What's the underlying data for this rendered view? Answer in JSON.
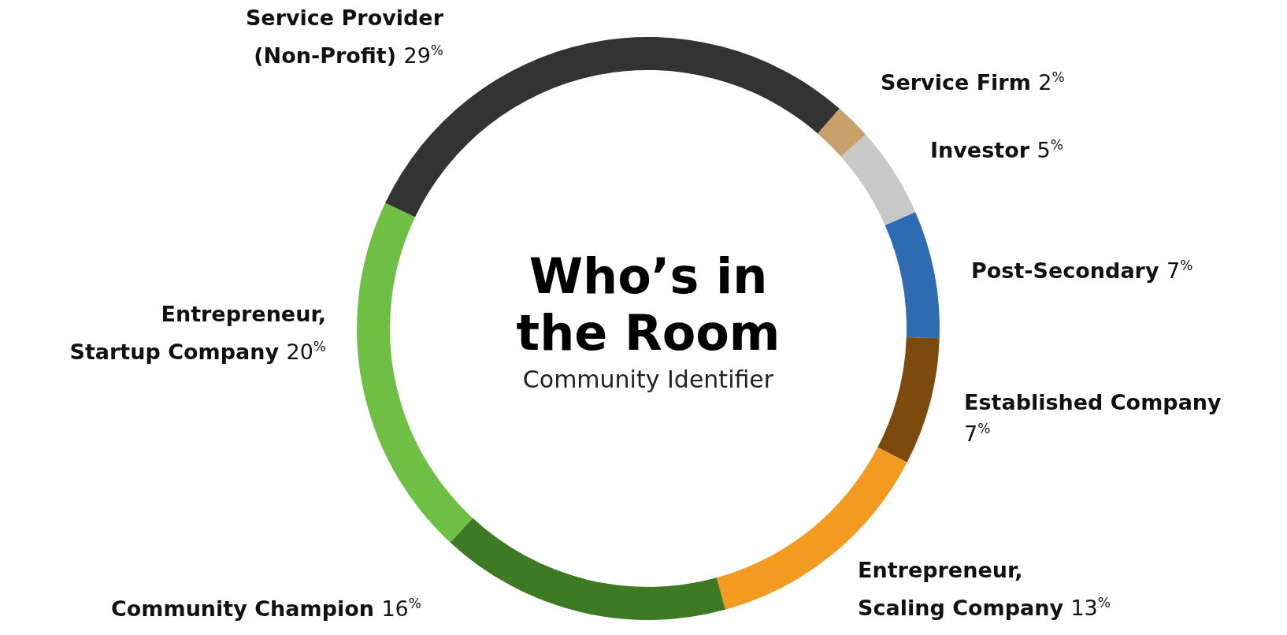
{
  "chart_data": {
    "type": "donut",
    "title": "Who’s in the Room",
    "subtitle": "Community Identifier",
    "categories": [
      "Service Firm",
      "Investor",
      "Post-Secondary",
      "Established Company",
      "Entrepreneur, Scaling Company",
      "Community Champion",
      "Entrepreneur, Startup Company",
      "Service Provider (Non-Profit)"
    ],
    "values": [
      2,
      5,
      7,
      7,
      13,
      16,
      20,
      29
    ],
    "value_labels": [
      "2$^{%}$",
      "5$^{%}$",
      "7$^{%}$",
      "7$^{%}$",
      "13$^{%}$",
      "16$^{%}$",
      "20$^{%}$",
      "29$^{%}$"
    ],
    "colors": [
      "#c9a06c",
      "#c8c8c8",
      "#2f6bb3",
      "#7b4a0c",
      "#f39a21",
      "#3d7a23",
      "#6fbf45",
      "#333333"
    ]
  }
}
